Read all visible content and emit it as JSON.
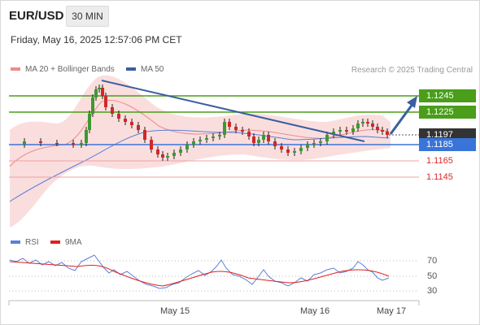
{
  "header": {
    "pair": "EUR/USD",
    "timeframe": "30 MIN"
  },
  "datetime": "Friday, May 16, 2025 12:57:06 PM CET",
  "legend": {
    "bollinger": {
      "label": "MA 20 + Bollinger Bands",
      "color": "#f08a8a"
    },
    "ma50": {
      "label": "MA 50",
      "color": "#3a5fa0"
    },
    "rsi": {
      "label": "RSI",
      "color": "#5b7fd6"
    },
    "ma9": {
      "label": "9MA",
      "color": "#e02020"
    }
  },
  "credit": "Research © 2025 Trading Central",
  "price_levels": {
    "r2": "1.1245",
    "r1": "1.1225",
    "last": "1.1197",
    "pivot": "1.1185",
    "s1": "1.1165",
    "s2": "1.1145"
  },
  "colors": {
    "resistance": "#4a9e19",
    "pivot": "#3a74d8",
    "support": "#d92b2b",
    "last": "#333333",
    "trendline": "#3a5fa0"
  },
  "rsi_ticks": [
    "70",
    "50",
    "30"
  ],
  "x_labels": [
    "May 15",
    "May 16",
    "May 17"
  ]
}
